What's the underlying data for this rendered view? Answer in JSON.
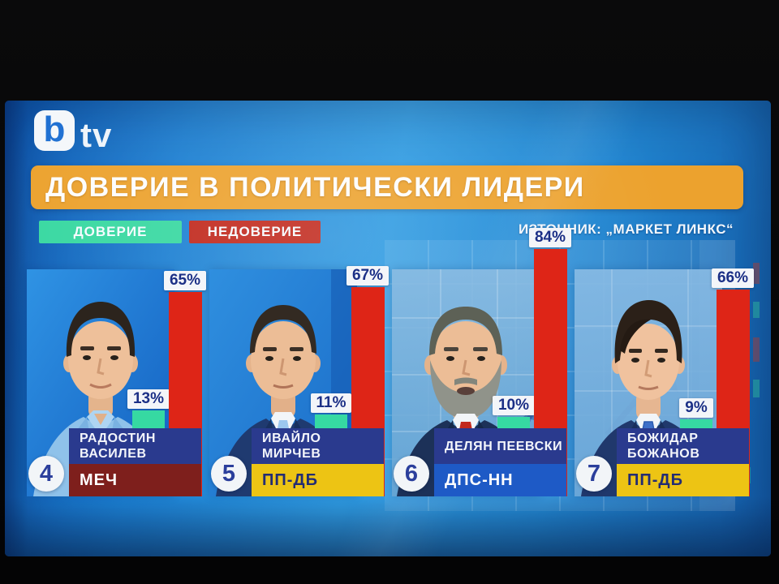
{
  "channel": {
    "name": "bTV",
    "logo_b": "b",
    "logo_tv": "tv"
  },
  "header": {
    "title": "ДОВЕРИЕ В ПОЛИТИЧЕСКИ ЛИДЕРИ",
    "source": "ИЗТОЧНИК: „МАРКЕТ ЛИНКС“"
  },
  "legend": {
    "trust": "ДОВЕРИЕ",
    "distrust": "НЕДОВЕРИЕ"
  },
  "colors": {
    "banner": "#eca22e",
    "trust_bar": "#36d9a2",
    "distrust_bar": "#de2517",
    "legend_trust": "#38d8a1",
    "legend_distrust": "#c1281c",
    "name_box": "#2a3a8e"
  },
  "politicians": [
    {
      "rank": "4",
      "name": "РАДОСТИН ВАСИЛЕВ",
      "name_line1": "РАДОСТИН",
      "name_line2": "ВАСИЛЕВ",
      "party": "МЕЧ",
      "party_color": "#7e1f1c",
      "party_text_color": "#ffffff",
      "trust_value": 13,
      "trust_label": "13%",
      "distrust_value": 65,
      "distrust_label": "65%"
    },
    {
      "rank": "5",
      "name": "ИВАЙЛО МИРЧЕВ",
      "name_line1": "ИВАЙЛО МИРЧЕВ",
      "name_line2": "",
      "party": "ПП-ДБ",
      "party_color": "#edc414",
      "party_text_color": "#232c73",
      "trust_value": 11,
      "trust_label": "11%",
      "distrust_value": 67,
      "distrust_label": "67%"
    },
    {
      "rank": "6",
      "name": "ДЕЛЯН ПЕЕВСКИ",
      "name_line1": "ДЕЛЯН ПЕЕВСКИ",
      "name_line2": "",
      "party": "ДПС-НН",
      "party_color": "#1e5ac6",
      "party_text_color": "#ffffff",
      "trust_value": 10,
      "trust_label": "10%",
      "distrust_value": 84,
      "distrust_label": "84%"
    },
    {
      "rank": "7",
      "name": "БОЖИДАР БОЖАНОВ",
      "name_line1": "БОЖИДАР",
      "name_line2": "БОЖАНОВ",
      "party": "ПП-ДБ",
      "party_color": "#edc414",
      "party_text_color": "#232c73",
      "trust_value": 9,
      "trust_label": "9%",
      "distrust_value": 66,
      "distrust_label": "66%"
    }
  ],
  "chart_data": {
    "type": "bar",
    "title": "ДОВЕРИЕ В ПОЛИТИЧЕСКИ ЛИДЕРИ",
    "source": "ИЗТОЧНИК: „МАРКЕТ ЛИНКС“",
    "unit": "%",
    "categories": [
      "РАДОСТИН ВАСИЛЕВ (МЕЧ)",
      "ИВАЙЛО МИРЧЕВ (ПП-ДБ)",
      "ДЕЛЯН ПЕЕВСКИ (ДПС-НН)",
      "БОЖИДАР БОЖАНОВ (ПП-ДБ)"
    ],
    "ranks": [
      4,
      5,
      6,
      7
    ],
    "series": [
      {
        "name": "ДОВЕРИЕ",
        "color": "#36d9a2",
        "values": [
          13,
          11,
          10,
          9
        ]
      },
      {
        "name": "НЕДОВЕРИЕ",
        "color": "#de2517",
        "values": [
          65,
          67,
          84,
          66
        ]
      }
    ],
    "ylim": [
      0,
      100
    ],
    "legend_position": "top-left",
    "grid": false
  }
}
